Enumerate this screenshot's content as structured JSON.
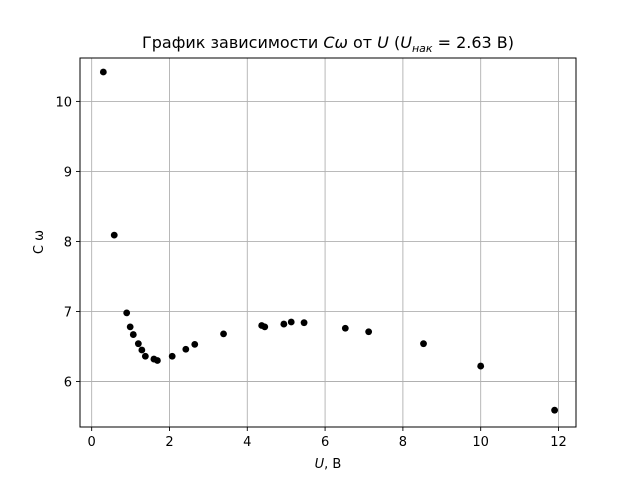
{
  "chart_data": {
    "type": "scatter",
    "title_main": "График зависимости ",
    "title_y_symbol": "Cω",
    "title_mid": " от ",
    "title_x_symbol": "U",
    "title_paren_open": " (",
    "title_sub_base": "U",
    "title_subscript": "нак",
    "title_value": " = 2.63 В)",
    "xlabel_symbol": "U",
    "xlabel_unit": ", В",
    "ylabel": "C ω",
    "xlim": [
      -0.3,
      12.45
    ],
    "ylim": [
      5.35,
      10.62
    ],
    "x_ticks": [
      0,
      2,
      4,
      6,
      8,
      10,
      12
    ],
    "x_tick_labels": [
      "0",
      "2",
      "4",
      "6",
      "8",
      "10",
      "12"
    ],
    "y_ticks": [
      6,
      7,
      8,
      9,
      10
    ],
    "y_tick_labels": [
      "6",
      "7",
      "8",
      "9",
      "10"
    ],
    "grid": true,
    "marker_color": "#000000",
    "points": [
      {
        "x": 0.3,
        "y": 10.42
      },
      {
        "x": 0.58,
        "y": 8.09
      },
      {
        "x": 0.9,
        "y": 6.98
      },
      {
        "x": 0.99,
        "y": 6.78
      },
      {
        "x": 1.07,
        "y": 6.67
      },
      {
        "x": 1.2,
        "y": 6.54
      },
      {
        "x": 1.29,
        "y": 6.45
      },
      {
        "x": 1.38,
        "y": 6.36
      },
      {
        "x": 1.6,
        "y": 6.32
      },
      {
        "x": 1.69,
        "y": 6.3
      },
      {
        "x": 2.07,
        "y": 6.36
      },
      {
        "x": 2.42,
        "y": 6.46
      },
      {
        "x": 2.65,
        "y": 6.53
      },
      {
        "x": 3.39,
        "y": 6.68
      },
      {
        "x": 4.37,
        "y": 6.8
      },
      {
        "x": 4.45,
        "y": 6.78
      },
      {
        "x": 4.94,
        "y": 6.82
      },
      {
        "x": 5.13,
        "y": 6.85
      },
      {
        "x": 5.46,
        "y": 6.84
      },
      {
        "x": 6.52,
        "y": 6.76
      },
      {
        "x": 7.12,
        "y": 6.71
      },
      {
        "x": 8.53,
        "y": 6.54
      },
      {
        "x": 10.0,
        "y": 6.22
      },
      {
        "x": 11.9,
        "y": 5.59
      }
    ]
  }
}
